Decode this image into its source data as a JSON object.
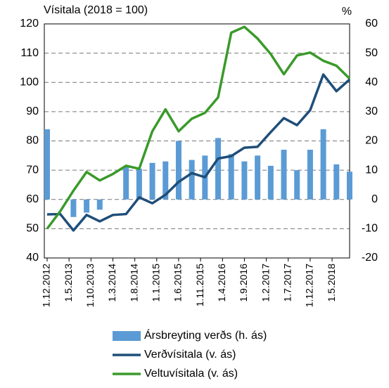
{
  "chart_data": {
    "type": "combo",
    "title": "Vísitala (2018 = 100)",
    "y2_label": "%",
    "x": [
      0,
      3,
      6,
      9,
      12,
      15,
      18,
      21,
      24,
      27,
      30,
      33,
      36,
      39,
      42,
      45,
      48,
      51,
      54,
      57,
      60,
      63,
      66,
      69
    ],
    "xlim": [
      0,
      69
    ],
    "xticks": [
      {
        "value": 0,
        "label": "1.12.2012"
      },
      {
        "value": 5,
        "label": "1.5.2013"
      },
      {
        "value": 10,
        "label": "1.10.2013"
      },
      {
        "value": 15,
        "label": "1.3.2014"
      },
      {
        "value": 20,
        "label": "1.8.2014"
      },
      {
        "value": 25,
        "label": "1.1.2015"
      },
      {
        "value": 30,
        "label": "1.6.2015"
      },
      {
        "value": 35,
        "label": "1.11.2015"
      },
      {
        "value": 40,
        "label": "1.4.2016"
      },
      {
        "value": 45,
        "label": "1.9.2016"
      },
      {
        "value": 50,
        "label": "1.2.2017"
      },
      {
        "value": 55,
        "label": "1.7.2017"
      },
      {
        "value": 60,
        "label": "1.12.2017"
      },
      {
        "value": 65,
        "label": "1.5.2018"
      }
    ],
    "ylim": [
      40,
      120
    ],
    "yticks": [
      40,
      50,
      60,
      70,
      80,
      90,
      100,
      110,
      120
    ],
    "y2lim": [
      -20,
      60
    ],
    "y2ticks": [
      -20,
      -10,
      0,
      10,
      20,
      30,
      40,
      50,
      60
    ],
    "grid": true,
    "series": [
      {
        "name": "Ársbreyting verðs (h. ás)",
        "type": "bar",
        "axis": "y2",
        "color": "#5b9bd5",
        "values": [
          24,
          0,
          -6,
          -4.5,
          -3.5,
          0,
          11,
          10.5,
          12.5,
          13,
          20,
          13.5,
          15,
          21,
          15.5,
          13,
          15,
          11.5,
          17,
          10,
          17,
          24,
          12,
          9.5
        ]
      },
      {
        "name": "Verðvísitala (v. ás)",
        "type": "line",
        "color": "#1f4e79",
        "values": [
          54.9,
          55,
          49.4,
          54.7,
          52.5,
          54.7,
          55,
          60.7,
          58.7,
          61.6,
          66,
          69,
          67.6,
          74,
          74.8,
          77.7,
          78,
          83,
          87.8,
          85.4,
          90.5,
          102.7,
          97,
          101
        ]
      },
      {
        "name": "Veltuvísitala (v. ás)",
        "type": "line",
        "color": "#3a9a2a",
        "values": [
          50,
          56,
          63,
          69.4,
          66.5,
          68.7,
          71.5,
          70.5,
          83.3,
          90.8,
          83.3,
          87.6,
          89.6,
          94.9,
          117,
          119,
          115,
          109.7,
          102.8,
          109.2,
          110.2,
          107.4,
          105.7,
          101.3
        ]
      }
    ]
  }
}
